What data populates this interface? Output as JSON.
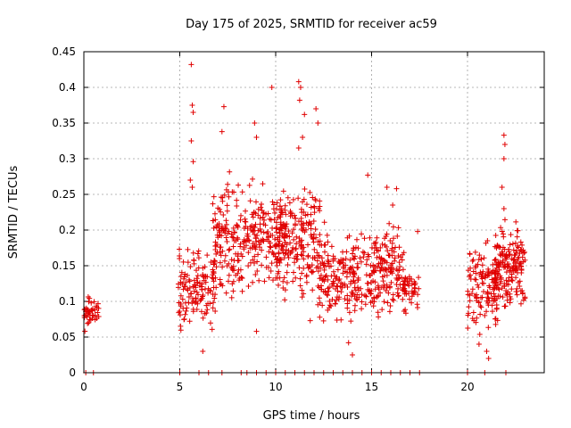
{
  "chart_data": {
    "type": "scatter",
    "title": "Day 175 of 2025, SRMTID for receiver ac59",
    "xlabel": "GPS time / hours",
    "ylabel": "SRMTID / TECUs",
    "xlim": [
      0,
      24
    ],
    "ylim": [
      0,
      0.45
    ],
    "xticks": [
      0,
      5,
      10,
      15,
      20
    ],
    "yticks": [
      0,
      0.05,
      0.1,
      0.15,
      0.2,
      0.25,
      0.3,
      0.35,
      0.4,
      0.45
    ],
    "grid": true,
    "marker": "+",
    "color": "#e00000",
    "zero_x": [
      0.1,
      0.5,
      5.0,
      6.0,
      6.5,
      7.2,
      8.2,
      8.5,
      9.0,
      9.5,
      10.0,
      10.5,
      11.0,
      11.5,
      12.0,
      12.5,
      13.0,
      13.5,
      14.0,
      14.5,
      15.0,
      15.5,
      16.0,
      16.5,
      17.0,
      17.5,
      20.0,
      20.9,
      22.0
    ],
    "highlights": [
      {
        "x": 5.6,
        "y": 0.432
      },
      {
        "x": 5.65,
        "y": 0.375
      },
      {
        "x": 5.7,
        "y": 0.365
      },
      {
        "x": 5.6,
        "y": 0.325
      },
      {
        "x": 5.7,
        "y": 0.296
      },
      {
        "x": 5.55,
        "y": 0.27
      },
      {
        "x": 5.65,
        "y": 0.26
      },
      {
        "x": 7.3,
        "y": 0.373
      },
      {
        "x": 7.2,
        "y": 0.338
      },
      {
        "x": 9.8,
        "y": 0.4
      },
      {
        "x": 8.9,
        "y": 0.35
      },
      {
        "x": 9.0,
        "y": 0.33
      },
      {
        "x": 11.2,
        "y": 0.408
      },
      {
        "x": 11.3,
        "y": 0.4
      },
      {
        "x": 11.25,
        "y": 0.382
      },
      {
        "x": 11.5,
        "y": 0.362
      },
      {
        "x": 12.1,
        "y": 0.37
      },
      {
        "x": 12.2,
        "y": 0.35
      },
      {
        "x": 11.4,
        "y": 0.33
      },
      {
        "x": 11.2,
        "y": 0.315
      },
      {
        "x": 14.8,
        "y": 0.277
      },
      {
        "x": 15.8,
        "y": 0.26
      },
      {
        "x": 16.3,
        "y": 0.258
      },
      {
        "x": 16.1,
        "y": 0.235
      },
      {
        "x": 17.4,
        "y": 0.198
      },
      {
        "x": 21.9,
        "y": 0.333
      },
      {
        "x": 21.95,
        "y": 0.32
      },
      {
        "x": 21.9,
        "y": 0.3
      },
      {
        "x": 21.8,
        "y": 0.26
      },
      {
        "x": 21.9,
        "y": 0.23
      },
      {
        "x": 9.0,
        "y": 0.058
      },
      {
        "x": 14.0,
        "y": 0.025
      },
      {
        "x": 6.2,
        "y": 0.03
      },
      {
        "x": 21.1,
        "y": 0.02
      },
      {
        "x": 21.0,
        "y": 0.03
      },
      {
        "x": 20.6,
        "y": 0.04
      },
      {
        "x": 11.8,
        "y": 0.073
      },
      {
        "x": 13.8,
        "y": 0.042
      }
    ],
    "clusters": [
      {
        "x0": 0.0,
        "x1": 0.8,
        "ymin": 0.055,
        "ymax": 0.115,
        "n": 45,
        "seed": 11
      },
      {
        "x0": 4.9,
        "x1": 6.9,
        "ymin": 0.04,
        "ymax": 0.2,
        "n": 130,
        "seed": 23
      },
      {
        "x0": 6.7,
        "x1": 8.3,
        "ymin": 0.07,
        "ymax": 0.29,
        "n": 140,
        "seed": 37
      },
      {
        "x0": 8.3,
        "x1": 10.5,
        "ymin": 0.1,
        "ymax": 0.28,
        "n": 170,
        "seed": 41
      },
      {
        "x0": 10.0,
        "x1": 12.3,
        "ymin": 0.08,
        "ymax": 0.3,
        "n": 190,
        "seed": 53
      },
      {
        "x0": 12.2,
        "x1": 14.2,
        "ymin": 0.05,
        "ymax": 0.22,
        "n": 150,
        "seed": 67
      },
      {
        "x0": 14.0,
        "x1": 16.8,
        "ymin": 0.06,
        "ymax": 0.22,
        "n": 210,
        "seed": 71
      },
      {
        "x0": 16.6,
        "x1": 17.5,
        "ymin": 0.08,
        "ymax": 0.15,
        "n": 35,
        "seed": 83
      },
      {
        "x0": 20.0,
        "x1": 21.6,
        "ymin": 0.04,
        "ymax": 0.2,
        "n": 130,
        "seed": 97
      },
      {
        "x0": 21.4,
        "x1": 23.0,
        "ymin": 0.07,
        "ymax": 0.23,
        "n": 170,
        "seed": 101
      }
    ]
  }
}
